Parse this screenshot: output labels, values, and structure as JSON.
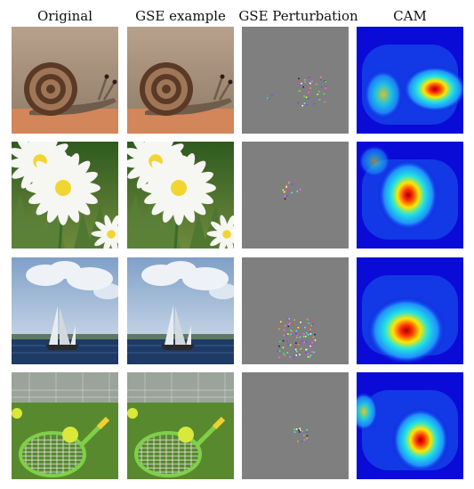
{
  "figure": {
    "column_headers": [
      "Original",
      "GSE example",
      "GSE Perturbation",
      "CAM"
    ],
    "rows": [
      {
        "subject": "snail",
        "colors": {
          "bg_top": "#b8a08c",
          "bg_bottom": "#8d7a66",
          "ground": "#d3865a",
          "shell_outer": "#5a3a26",
          "shell_inner": "#a07658",
          "body": "#6f5c4b"
        }
      },
      {
        "subject": "daisy",
        "colors": {
          "bg_top": "#2f5a1f",
          "bg_bottom": "#6f8b3d",
          "petal": "#f6f6f2",
          "center": "#f1d631",
          "stem": "#3c6b2a"
        }
      },
      {
        "subject": "sailboat",
        "colors": {
          "sky_top": "#7fa0c8",
          "sky_bottom": "#c5d4e6",
          "cloud": "#eef2f7",
          "water": "#1e3a66",
          "sail": "#e9ecef",
          "hull": "#2a2a2a"
        }
      },
      {
        "subject": "tennis-racket",
        "colors": {
          "grass": "#4f7d2a",
          "grass_light": "#6da03a",
          "racket": "#7fd048",
          "ball": "#d9e83a",
          "net": "#d8d8d8"
        }
      }
    ],
    "perturbation_background": "#7f7f7f",
    "cam_colors": {
      "cold": "#0b0bd8",
      "cool": "#2090ff",
      "mid": "#22e4e0",
      "warm": "#ffe600",
      "hot": "#ff2a00",
      "peak": "#a60000"
    }
  }
}
